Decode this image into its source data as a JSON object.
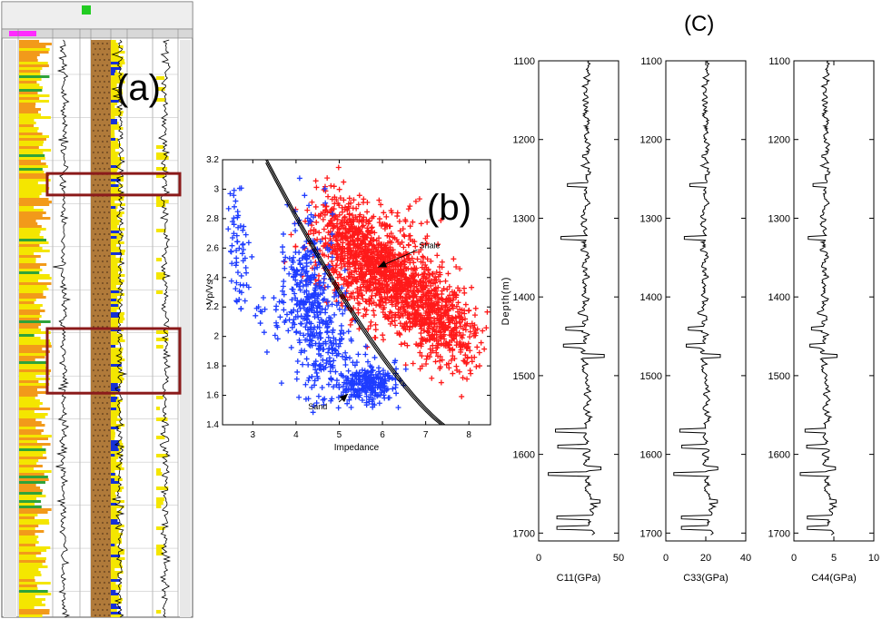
{
  "panel_labels": {
    "a": "(a)",
    "b": "(b)",
    "c": "(C)"
  },
  "colors": {
    "track_yellow": "#f4e600",
    "track_orange": "#f29a1a",
    "track_green": "#2fa33a",
    "track_brown": "#b07a3a",
    "track_blue": "#1530d8",
    "highlight_box": "#8b1a1a",
    "sand": "#1e3cff",
    "shale": "#ff1a1a",
    "log_line": "#000000"
  },
  "chart_data": [
    {
      "type": "image",
      "panel": "a",
      "description_visible": "multi-track well log display",
      "highlight_boxes": [
        {
          "top_depth": 1215,
          "bottom_depth": 1240
        },
        {
          "top_depth": 1395,
          "bottom_depth": 1470
        }
      ],
      "depth_range": [
        1060,
        1730
      ]
    },
    {
      "type": "scatter",
      "panel": "b",
      "title": "",
      "xlabel": "Impedance",
      "ylabel": "Vp/Vs",
      "xlim": [
        2.3,
        8.5
      ],
      "ylim": [
        1.4,
        3.2
      ],
      "xticks": [
        3,
        4,
        5,
        6,
        7,
        8
      ],
      "yticks": [
        1.4,
        1.6,
        1.8,
        2,
        2.2,
        2.4,
        2.6,
        2.8,
        3,
        3.2
      ],
      "grid": false,
      "annotations": [
        {
          "text": "Shale",
          "x": 6.85,
          "y": 2.6,
          "arrow_to": [
            5.9,
            2.47
          ]
        },
        {
          "text": "Sand",
          "x": 4.7,
          "y": 1.53,
          "arrow_to": [
            5.2,
            1.61
          ]
        }
      ],
      "series": [
        {
          "name": "Sand",
          "marker": "+",
          "color": "#1e3cff",
          "regions": [
            {
              "x_center": 2.7,
              "y_center": 2.55,
              "spread_x": 0.15,
              "spread_y": 0.25,
              "count": 60
            },
            {
              "x_center": 4.3,
              "y_center": 2.35,
              "spread_x": 0.35,
              "spread_y": 0.3,
              "count": 260
            },
            {
              "x_center": 4.6,
              "y_center": 1.95,
              "spread_x": 0.45,
              "spread_y": 0.25,
              "count": 180
            },
            {
              "x_center": 5.6,
              "y_center": 1.68,
              "spread_x": 0.45,
              "spread_y": 0.08,
              "count": 260
            },
            {
              "x_center": 3.5,
              "y_center": 2.15,
              "spread_x": 0.35,
              "spread_y": 0.15,
              "count": 25
            }
          ]
        },
        {
          "name": "Shale",
          "marker": "+",
          "color": "#ff1a1a",
          "regions": [
            {
              "x_center": 5.9,
              "y_center": 2.45,
              "spread_x": 0.9,
              "spread_y": 0.22,
              "count": 1100
            },
            {
              "x_center": 7.3,
              "y_center": 2.1,
              "spread_x": 0.6,
              "spread_y": 0.18,
              "count": 500
            },
            {
              "x_center": 5.2,
              "y_center": 2.75,
              "spread_x": 0.4,
              "spread_y": 0.15,
              "count": 150
            }
          ]
        }
      ],
      "boundary_curves": [
        {
          "a": 3.2,
          "b": 0.45,
          "x0": 3.3,
          "x1": 7.7
        },
        {
          "a": 3.22,
          "b": 0.448,
          "x0": 3.3,
          "x1": 7.75
        },
        {
          "a": 3.18,
          "b": 0.452,
          "x0": 3.3,
          "x1": 7.65
        }
      ]
    },
    {
      "type": "line",
      "panel": "c",
      "ylabel": "Depth(m)",
      "ylim": [
        1100,
        1710
      ],
      "yticks": [
        1100,
        1200,
        1300,
        1400,
        1500,
        1600,
        1700
      ],
      "tracks": [
        {
          "xlabel": "C11(GPa)",
          "xlim": [
            0,
            50
          ],
          "xticks": [
            0,
            50
          ],
          "baseline": 30,
          "amp": 4
        },
        {
          "xlabel": "C33(GPa)",
          "xlim": [
            0,
            40
          ],
          "xticks": [
            0,
            20,
            40
          ],
          "baseline": 20,
          "amp": 3
        },
        {
          "xlabel": "C44(GPa)",
          "xlim": [
            0,
            10
          ],
          "xticks": [
            0,
            5,
            10
          ],
          "baseline": 4,
          "amp": 0.8
        }
      ],
      "excursions": [
        {
          "depth": 1258,
          "factor": 0.6
        },
        {
          "depth": 1325,
          "factor": 0.5
        },
        {
          "depth": 1440,
          "factor": 0.6
        },
        {
          "depth": 1462,
          "factor": 0.55
        },
        {
          "depth": 1475,
          "factor": 1.4
        },
        {
          "depth": 1570,
          "factor": 0.35
        },
        {
          "depth": 1590,
          "factor": 0.4
        },
        {
          "depth": 1618,
          "factor": 1.3
        },
        {
          "depth": 1625,
          "factor": 0.2
        },
        {
          "depth": 1660,
          "factor": 1.2
        },
        {
          "depth": 1680,
          "factor": 0.3
        },
        {
          "depth": 1693,
          "factor": 0.3
        }
      ]
    }
  ]
}
